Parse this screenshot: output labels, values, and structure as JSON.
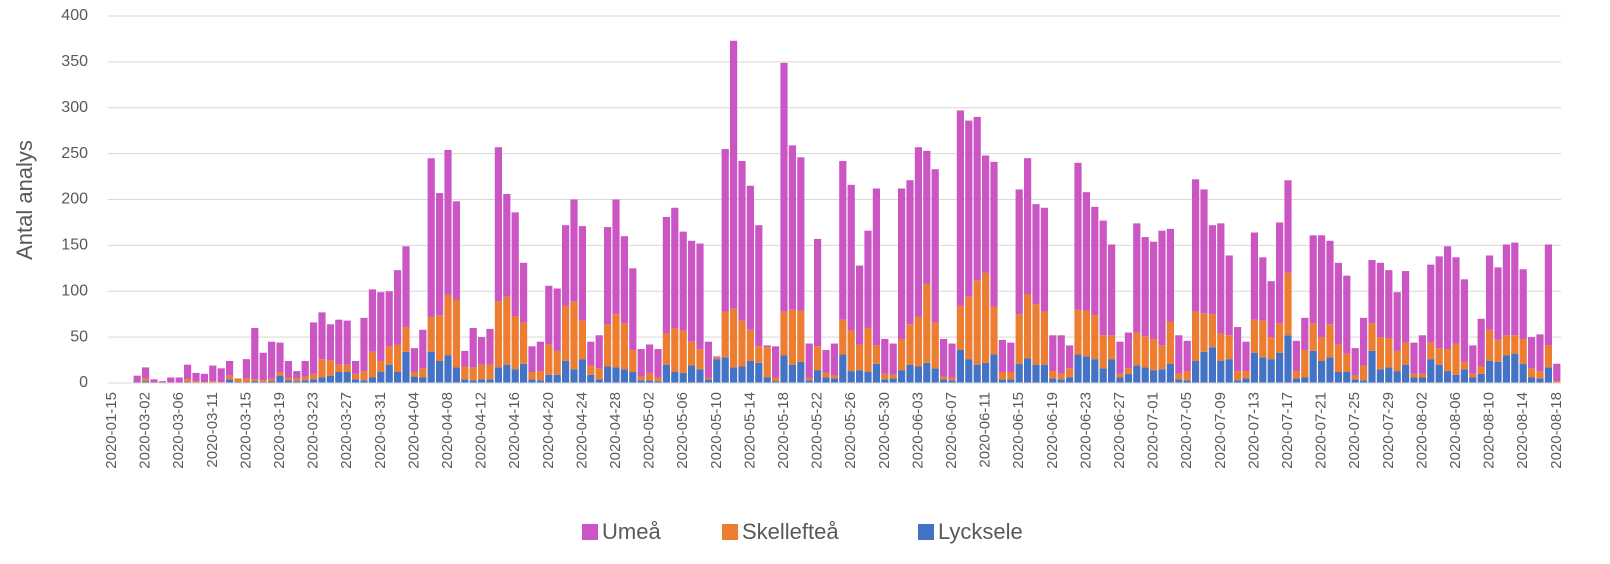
{
  "chart_data": {
    "type": "stacked_bar",
    "ylabel": "Antal analys",
    "ylim": [
      0,
      400
    ],
    "yticks": [
      0,
      50,
      100,
      150,
      200,
      250,
      300,
      350,
      400
    ],
    "grid": true,
    "legend": "bottom",
    "categories": [
      "2020-01-15",
      null,
      null,
      null,
      "2020-03-02",
      null,
      null,
      null,
      "2020-03-06",
      null,
      null,
      null,
      "2020-03-11",
      null,
      null,
      null,
      "2020-03-15",
      null,
      null,
      null,
      "2020-03-19",
      null,
      null,
      null,
      "2020-03-23",
      null,
      null,
      null,
      "2020-03-27",
      null,
      null,
      null,
      "2020-03-31",
      null,
      null,
      null,
      "2020-04-04",
      null,
      null,
      null,
      "2020-04-08",
      null,
      null,
      null,
      "2020-04-12",
      null,
      null,
      null,
      "2020-04-16",
      null,
      null,
      null,
      "2020-04-20",
      null,
      null,
      null,
      "2020-04-24",
      null,
      null,
      null,
      "2020-04-28",
      null,
      null,
      null,
      "2020-05-02",
      null,
      null,
      null,
      "2020-05-06",
      null,
      null,
      null,
      "2020-05-10",
      null,
      null,
      null,
      "2020-05-14",
      null,
      null,
      null,
      "2020-05-18",
      null,
      null,
      null,
      "2020-05-22",
      null,
      null,
      null,
      "2020-05-26",
      null,
      null,
      null,
      "2020-05-30",
      null,
      null,
      null,
      "2020-06-03",
      null,
      null,
      null,
      "2020-06-07",
      null,
      null,
      null,
      "2020-06-11",
      null,
      null,
      null,
      "2020-06-15",
      null,
      null,
      null,
      "2020-06-19",
      null,
      null,
      null,
      "2020-06-23",
      null,
      null,
      null,
      "2020-06-27",
      null,
      null,
      null,
      "2020-07-01",
      null,
      null,
      null,
      "2020-07-05",
      null,
      null,
      null,
      "2020-07-09",
      null,
      null,
      null,
      "2020-07-13",
      null,
      null,
      null,
      "2020-07-17",
      null,
      null,
      null,
      "2020-07-21",
      null,
      null,
      null,
      "2020-07-25",
      null,
      null,
      null,
      "2020-07-29",
      null,
      null,
      null,
      "2020-08-02",
      null,
      null,
      null,
      "2020-08-06",
      null,
      null,
      null,
      "2020-08-10",
      null,
      null,
      null,
      "2020-08-14",
      null,
      null,
      null,
      "2020-08-18"
    ],
    "series": [
      {
        "name": "Umeå",
        "color": "#cc55c4",
        "values": [
          0,
          0,
          0,
          8,
          12,
          4,
          2,
          6,
          6,
          16,
          9,
          9,
          17,
          15,
          16,
          0,
          21,
          56,
          30,
          40,
          32,
          18,
          8,
          17,
          56,
          51,
          39,
          49,
          48,
          14,
          58,
          68,
          75,
          60,
          81,
          88,
          26,
          42,
          173,
          133,
          158,
          107,
          17,
          43,
          30,
          39,
          168,
          112,
          113,
          65,
          28,
          32,
          64,
          68,
          88,
          111,
          103,
          26,
          36,
          106,
          125,
          95,
          89,
          30,
          31,
          31,
          127,
          131,
          108,
          110,
          115,
          39,
          1,
          177,
          292,
          174,
          157,
          132,
          2,
          34,
          271,
          179,
          167,
          38,
          117,
          25,
          35,
          173,
          159,
          86,
          106,
          171,
          38,
          34,
          164,
          157,
          185,
          145,
          167,
          41,
          37,
          213,
          192,
          178,
          128,
          158,
          35,
          32,
          136,
          148,
          109,
          113,
          39,
          42,
          25,
          160,
          129,
          118,
          125,
          99,
          35,
          39,
          119,
          108,
          106,
          125,
          101,
          42,
          33,
          144,
          135,
          97,
          120,
          87,
          48,
          32,
          95,
          69,
          61,
          110,
          101,
          33,
          35,
          96,
          111,
          91,
          89,
          85,
          30,
          52,
          69,
          81,
          74,
          64,
          78,
          34,
          42,
          85,
          100,
          112,
          94,
          90,
          31,
          52,
          81,
          79,
          99,
          101,
          76,
          34,
          40,
          110,
          19
        ]
      },
      {
        "name": "Skellefteå",
        "color": "#ed7d31",
        "values": [
          0,
          0,
          0,
          0,
          3,
          0,
          0,
          0,
          0,
          3,
          2,
          1,
          2,
          1,
          4,
          4,
          4,
          2,
          2,
          3,
          4,
          3,
          3,
          4,
          6,
          20,
          17,
          8,
          8,
          6,
          10,
          28,
          12,
          20,
          30,
          27,
          5,
          10,
          38,
          50,
          66,
          74,
          14,
          14,
          16,
          16,
          72,
          74,
          58,
          45,
          8,
          10,
          33,
          26,
          60,
          74,
          42,
          10,
          12,
          46,
          58,
          50,
          24,
          4,
          8,
          4,
          34,
          48,
          46,
          26,
          22,
          2,
          2,
          50,
          64,
          50,
          34,
          18,
          33,
          4,
          48,
          60,
          56,
          2,
          26,
          5,
          3,
          38,
          44,
          28,
          48,
          20,
          6,
          4,
          34,
          44,
          54,
          86,
          50,
          3,
          3,
          48,
          68,
          92,
          98,
          52,
          8,
          8,
          54,
          70,
          66,
          58,
          8,
          6,
          10,
          49,
          50,
          48,
          36,
          26,
          4,
          6,
          36,
          34,
          34,
          26,
          46,
          6,
          10,
          54,
          42,
          36,
          30,
          26,
          10,
          8,
          36,
          40,
          24,
          32,
          68,
          8,
          30,
          30,
          26,
          36,
          30,
          20,
          4,
          16,
          30,
          35,
          32,
          22,
          24,
          4,
          4,
          18,
          18,
          24,
          34,
          8,
          4,
          8,
          34,
          24,
          22,
          20,
          27,
          10,
          8,
          24,
          2
        ]
      },
      {
        "name": "Lycksele",
        "color": "#4472c4",
        "values": [
          0,
          0,
          0,
          0,
          2,
          0,
          0,
          0,
          0,
          1,
          0,
          0,
          0,
          0,
          4,
          1,
          1,
          2,
          1,
          2,
          8,
          3,
          2,
          3,
          4,
          6,
          8,
          12,
          12,
          4,
          3,
          6,
          12,
          20,
          12,
          34,
          7,
          6,
          34,
          24,
          30,
          17,
          4,
          3,
          4,
          4,
          17,
          20,
          15,
          21,
          4,
          3,
          9,
          9,
          24,
          15,
          26,
          9,
          4,
          18,
          17,
          15,
          12,
          3,
          3,
          2,
          20,
          12,
          11,
          19,
          15,
          4,
          26,
          28,
          17,
          18,
          24,
          22,
          6,
          2,
          30,
          20,
          23,
          3,
          14,
          6,
          5,
          31,
          13,
          14,
          12,
          21,
          4,
          5,
          14,
          20,
          18,
          22,
          16,
          4,
          3,
          36,
          26,
          20,
          22,
          31,
          4,
          4,
          21,
          27,
          20,
          20,
          5,
          4,
          6,
          31,
          29,
          26,
          16,
          26,
          6,
          10,
          19,
          17,
          14,
          15,
          21,
          4,
          3,
          24,
          34,
          39,
          24,
          26,
          3,
          5,
          33,
          28,
          26,
          33,
          52,
          5,
          6,
          35,
          24,
          28,
          12,
          12,
          4,
          3,
          35,
          15,
          17,
          13,
          20,
          6,
          6,
          26,
          20,
          13,
          9,
          15,
          6,
          10,
          24,
          23,
          30,
          32,
          21,
          6,
          5,
          17,
          0
        ]
      }
    ]
  }
}
